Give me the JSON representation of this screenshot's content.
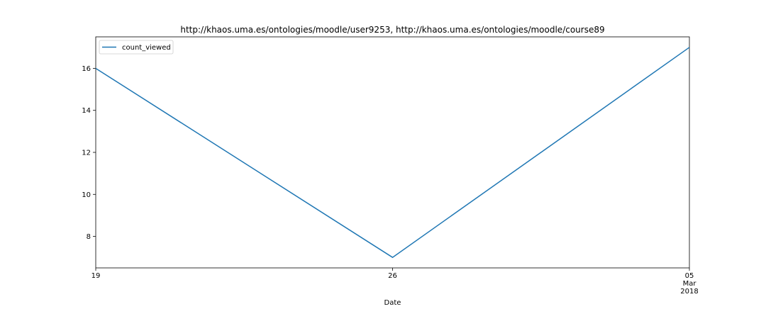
{
  "chart_data": {
    "type": "line",
    "title": "http://khaos.uma.es/ontologies/moodle/user9253, http://khaos.uma.es/ontologies/moodle/course89",
    "xlabel": "Date",
    "ylabel": "",
    "x": [
      "2018-02-19",
      "2018-02-26",
      "2018-03-05"
    ],
    "xlim": [
      "2018-02-19",
      "2018-03-05"
    ],
    "ylim": [
      6.5,
      17.5
    ],
    "x_ticks": [
      {
        "date": "2018-02-19",
        "lines": [
          "19"
        ]
      },
      {
        "date": "2018-02-26",
        "lines": [
          "26"
        ]
      },
      {
        "date": "2018-03-05",
        "lines": [
          "05",
          "Mar",
          "2018"
        ]
      }
    ],
    "y_ticks": [
      8,
      10,
      12,
      14,
      16
    ],
    "series": [
      {
        "name": "count_viewed",
        "values": [
          16,
          7,
          17
        ],
        "color": "#1f77b4"
      }
    ],
    "legend": {
      "position": "upper left",
      "entries": [
        "count_viewed"
      ]
    },
    "grid": false
  }
}
